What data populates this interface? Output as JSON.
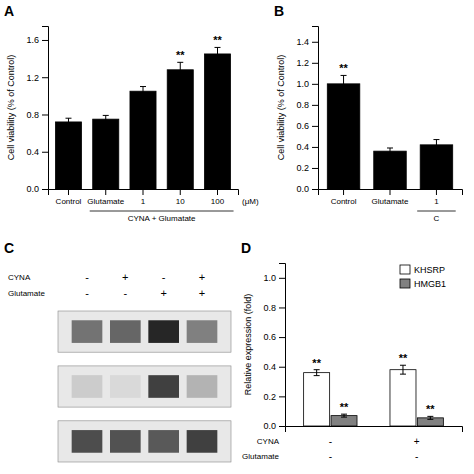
{
  "chart_data": [
    {
      "type": "bar",
      "title": "A",
      "categories": [
        "Control",
        "Glutamate",
        "1",
        "10",
        "100"
      ],
      "values": [
        0.72,
        0.75,
        1.05,
        1.28,
        1.45
      ],
      "errors": [
        0.04,
        0.04,
        0.05,
        0.08,
        0.07
      ],
      "sig_labels": [
        null,
        null,
        null,
        "**",
        "**"
      ],
      "color": "#000000",
      "ylabel": "Cell viability (% of Control)",
      "xlabel": "(μM)",
      "group_labels": [
        {
          "text": "CYNA + Glumatate",
          "from": "Glutamate",
          "to": "100"
        }
      ],
      "ylim": [
        0,
        1.75
      ],
      "yticks": [
        {
          "value": 0,
          "label": "0.0"
        },
        0.4,
        0.8,
        1.2,
        1.6
      ]
    },
    {
      "type": "bar",
      "title": "B",
      "categories": [
        "Control",
        "Glutamate",
        "1"
      ],
      "values": [
        1.0,
        0.36,
        0.42
      ],
      "errors": [
        0.08,
        0.03,
        0.05
      ],
      "sig_labels": [
        "**",
        null,
        null
      ],
      "color": "#000000",
      "ylabel": "Cell viability (% of Control)",
      "group_labels": [
        {
          "text": "C",
          "from": "1",
          "to": "1"
        }
      ],
      "ylim": [
        0,
        1.55
      ],
      "yticks": [
        {
          "value": 0,
          "label": "0.0"
        },
        0.2,
        0.4,
        0.6,
        0.8,
        {
          "value": 1,
          "label": "1.0"
        },
        1.2,
        1.4
      ]
    },
    {
      "type": "blot",
      "title": "C",
      "label_rows": [
        {
          "name": "CYNA",
          "values": [
            "-",
            "+",
            "-",
            "+"
          ]
        },
        {
          "name": "Glutamate",
          "values": [
            "-",
            "-",
            "+",
            "+"
          ]
        }
      ],
      "cells": [
        [
          0.55,
          0.6,
          0.85,
          0.5
        ],
        [
          0.2,
          0.15,
          0.75,
          0.3
        ],
        [
          0.7,
          0.68,
          0.65,
          0.75
        ]
      ],
      "tick_labels": false
    },
    {
      "type": "bar",
      "title": "D",
      "label_rows": [
        {
          "name": "CYNA",
          "values": [
            "-",
            "+"
          ]
        },
        {
          "name": "Glutamate",
          "values": [
            "-",
            "-"
          ]
        }
      ],
      "series": [
        {
          "name": "KHSRP",
          "color": "#ffffff",
          "values": [
            0.36,
            0.38
          ],
          "errors": [
            0.02,
            0.03
          ],
          "sig_labels": [
            "**",
            "**"
          ]
        },
        {
          "name": "HMGB1",
          "color": "#808080",
          "values": [
            0.07,
            0.055
          ],
          "errors": [
            0.01,
            0.01
          ],
          "sig_labels": [
            "**",
            "**"
          ]
        }
      ],
      "ylabel": "Relative expression (fold)",
      "ylim": [
        0,
        1.1
      ],
      "yticks": [
        {
          "value": 0,
          "label": "0.0"
        },
        0.2,
        0.4,
        0.6,
        0.8,
        {
          "value": 1,
          "label": "1.0"
        }
      ],
      "legend": "upper right",
      "tick_labels": "y"
    }
  ]
}
